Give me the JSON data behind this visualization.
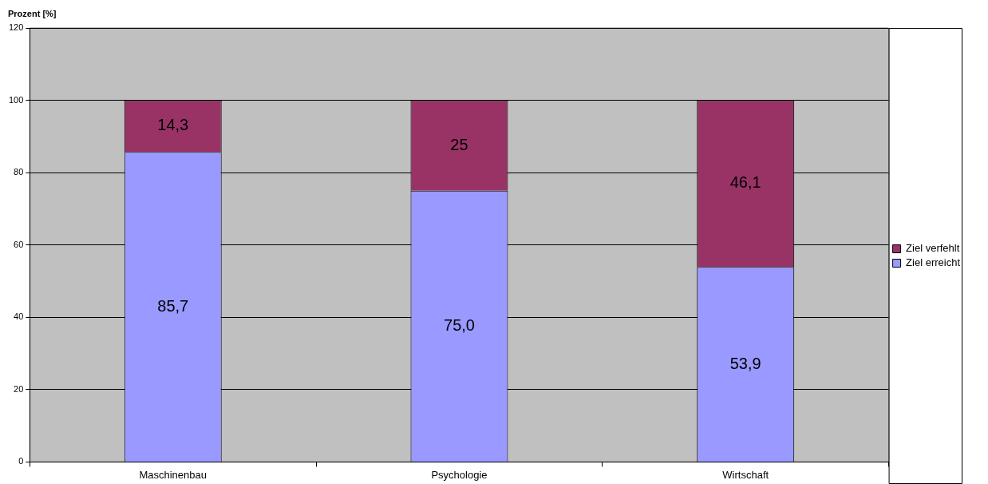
{
  "chart_data": {
    "type": "bar",
    "stacked": true,
    "ylabel": "Prozent [%]",
    "categories": [
      "Maschinenbau",
      "Psychologie",
      "Wirtschaft"
    ],
    "series": [
      {
        "name": "Ziel erreicht",
        "color": "#9999ff",
        "values": [
          85.7,
          75.0,
          53.9
        ],
        "value_labels": [
          "85,7",
          "75,0",
          "53,9"
        ]
      },
      {
        "name": "Ziel verfehlt",
        "color": "#993366",
        "values": [
          14.3,
          25,
          46.1
        ],
        "value_labels": [
          "14,3",
          "25",
          "46,1"
        ]
      }
    ],
    "ylim": [
      0,
      120
    ],
    "yticks": [
      0,
      20,
      40,
      60,
      80,
      100,
      120
    ],
    "grid": "y",
    "legend": "right"
  }
}
